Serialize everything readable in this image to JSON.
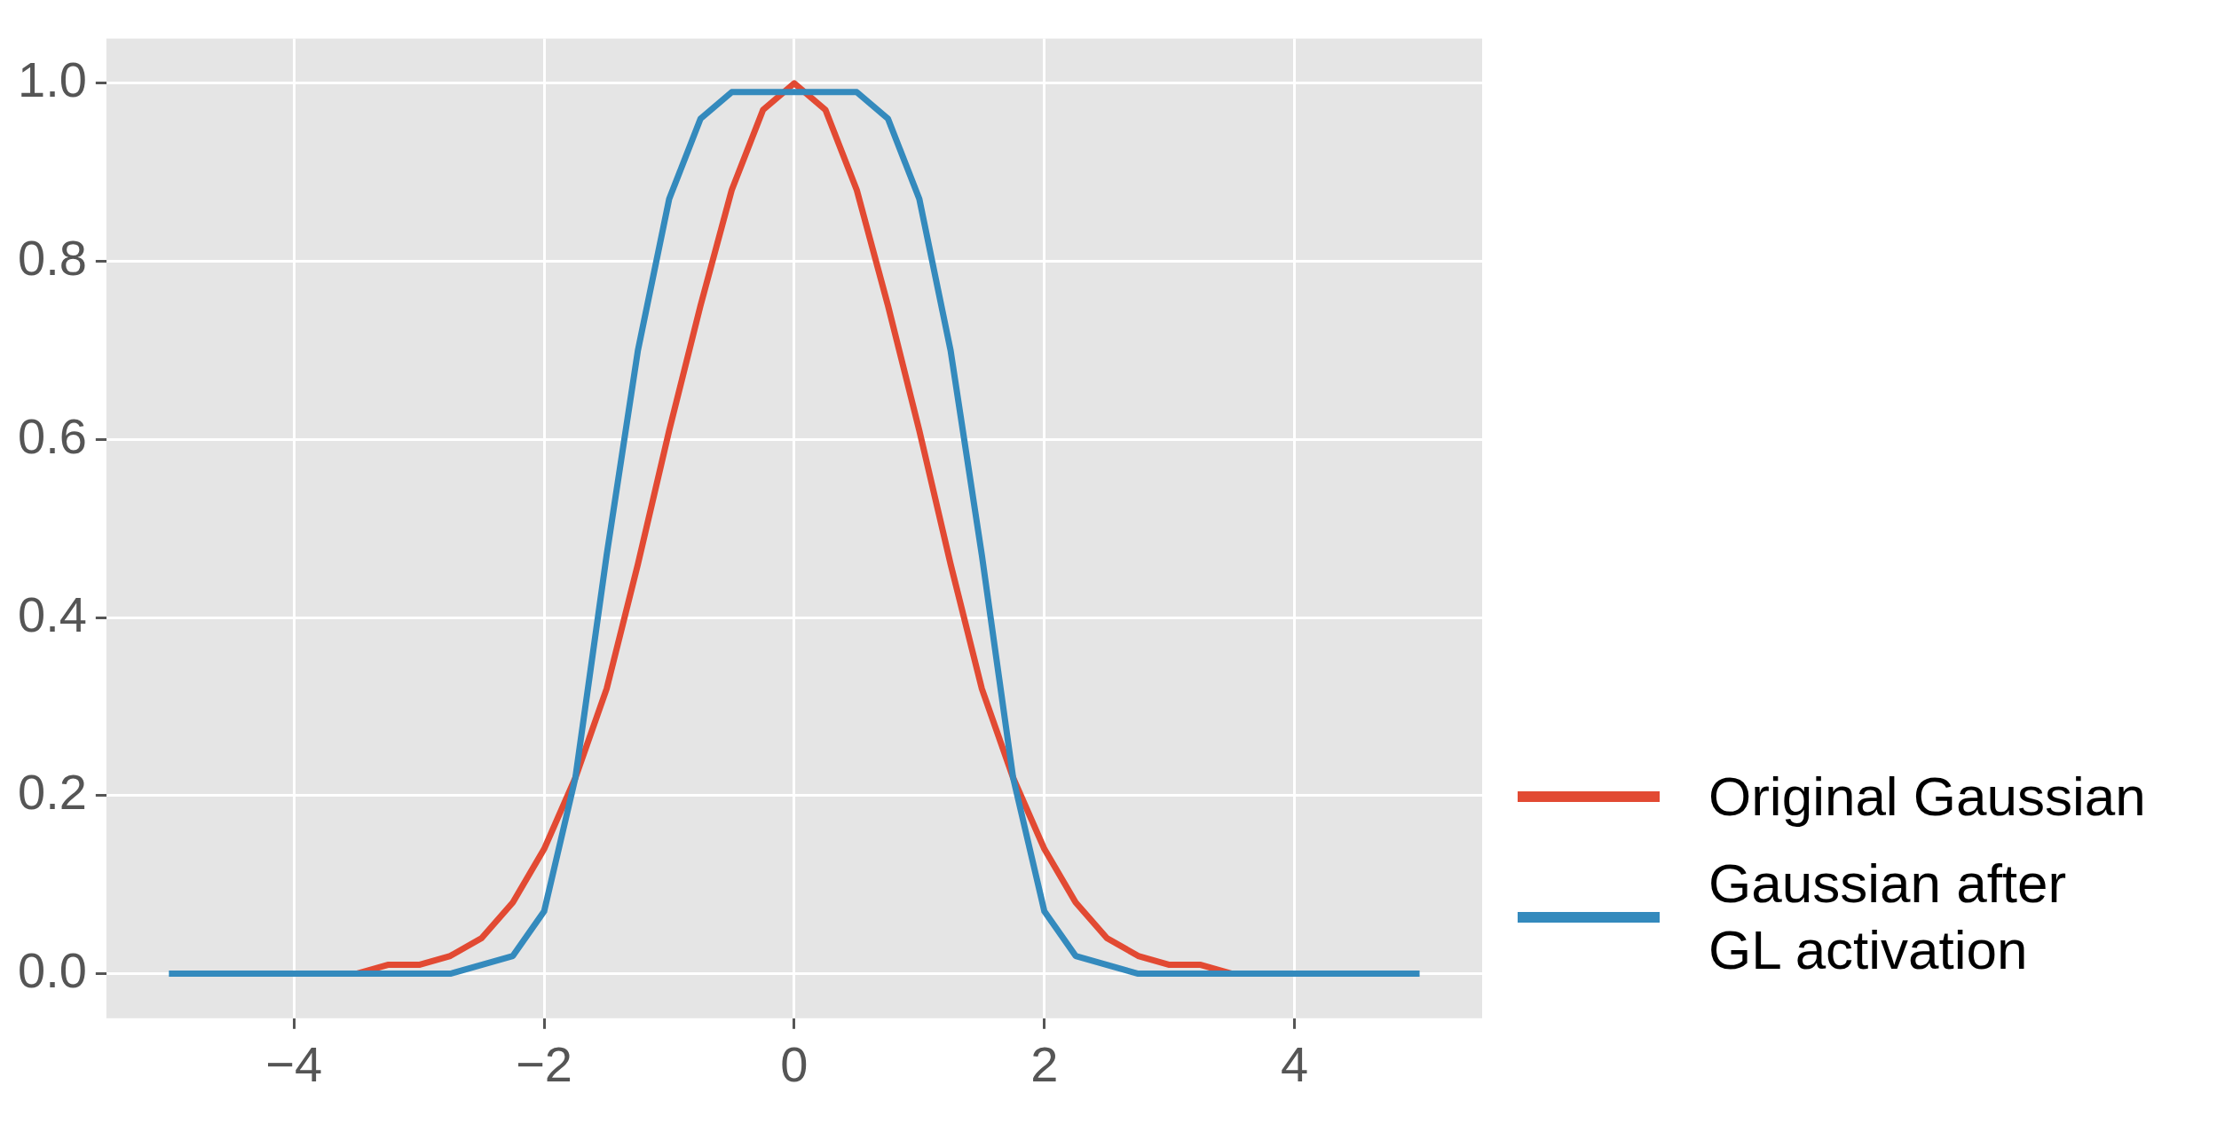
{
  "chart_data": {
    "type": "line",
    "x": [
      -5,
      -4.75,
      -4.5,
      -4.25,
      -4,
      -3.75,
      -3.5,
      -3.25,
      -3,
      -2.75,
      -2.5,
      -2.25,
      -2,
      -1.75,
      -1.5,
      -1.25,
      -1,
      -0.75,
      -0.5,
      -0.25,
      0,
      0.25,
      0.5,
      0.75,
      1,
      1.25,
      1.5,
      1.75,
      2,
      2.25,
      2.5,
      2.75,
      3,
      3.25,
      3.5,
      3.75,
      4,
      4.25,
      4.5,
      4.75,
      5
    ],
    "series": [
      {
        "name": "Original Gaussian",
        "color": "#e24a33",
        "values": [
          null,
          null,
          null,
          null,
          null,
          0,
          0,
          0.01,
          0.01,
          0.02,
          0.04,
          0.08,
          0.14,
          0.22,
          0.32,
          0.46,
          0.61,
          0.75,
          0.88,
          0.97,
          1.0,
          0.97,
          0.88,
          0.75,
          0.61,
          0.46,
          0.32,
          0.22,
          0.14,
          0.08,
          0.04,
          0.02,
          0.01,
          0.01,
          0,
          0,
          null,
          null,
          null,
          null,
          null
        ]
      },
      {
        "name": "Gaussian after GL activation",
        "color": "#348abd",
        "values": [
          0,
          0,
          0,
          0,
          0,
          0,
          0,
          0,
          0,
          0,
          0.01,
          0.02,
          0.07,
          0.22,
          0.47,
          0.7,
          0.87,
          0.96,
          0.99,
          0.99,
          0.99,
          0.99,
          0.99,
          0.96,
          0.87,
          0.7,
          0.47,
          0.22,
          0.07,
          0.02,
          0.01,
          0,
          0,
          0,
          0,
          0,
          0,
          0,
          0,
          0,
          0
        ]
      }
    ],
    "xlim": [
      -5.5,
      5.5
    ],
    "xticks": [
      {
        "value": -4,
        "label": "−4"
      },
      {
        "value": -2,
        "label": "−2"
      },
      0,
      2,
      4
    ],
    "ylim": [
      -0.05,
      1.05
    ],
    "yticks": [
      {
        "value": 0,
        "label": "0.0"
      },
      {
        "value": 0.2,
        "label": "0.2"
      },
      {
        "value": 0.4,
        "label": "0.4"
      },
      {
        "value": 0.6,
        "label": "0.6"
      },
      {
        "value": 0.8,
        "label": "0.8"
      },
      {
        "value": 1,
        "label": "1.0"
      }
    ],
    "grid": true,
    "legend": "right",
    "line_style": "solid"
  }
}
